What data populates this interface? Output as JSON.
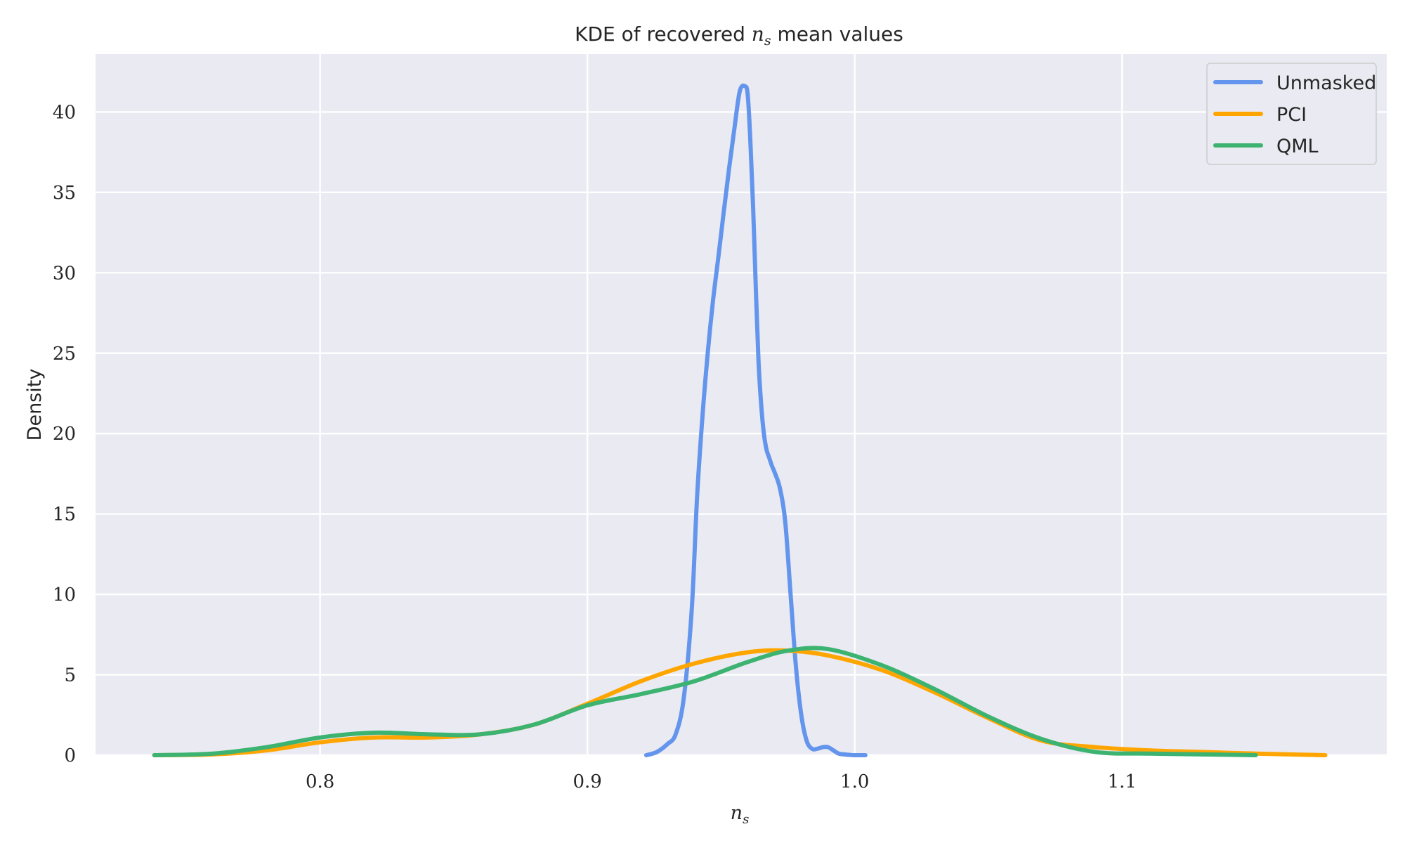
{
  "chart_data": {
    "type": "line",
    "title": {
      "prefix": "KDE of recovered ",
      "math_base": "n",
      "math_sub": "s",
      "suffix": " mean values"
    },
    "xlabel": {
      "math_base": "n",
      "math_sub": "s"
    },
    "ylabel": "Density",
    "xlim": [
      0.716,
      1.199
    ],
    "ylim": [
      0,
      43.6
    ],
    "xticks": [
      0.8,
      0.9,
      1.0,
      1.1
    ],
    "xtick_labels": [
      "0.8",
      "0.9",
      "1.0",
      "1.1"
    ],
    "yticks": [
      0,
      5,
      10,
      15,
      20,
      25,
      30,
      35,
      40
    ],
    "ytick_labels": [
      "0",
      "5",
      "10",
      "15",
      "20",
      "25",
      "30",
      "35",
      "40"
    ],
    "grid": true,
    "legend_position": "top-right",
    "background_color": "#eaeaf2",
    "series": [
      {
        "name": "Unmasked",
        "color": "#6495ed",
        "x": [
          0.922,
          0.926,
          0.93,
          0.933,
          0.936,
          0.939,
          0.941,
          0.943,
          0.945,
          0.947,
          0.949,
          0.951,
          0.953,
          0.955,
          0.957,
          0.959,
          0.96,
          0.961,
          0.962,
          0.963,
          0.964,
          0.965,
          0.966,
          0.967,
          0.968,
          0.969,
          0.97,
          0.972,
          0.974,
          0.976,
          0.978,
          0.98,
          0.982,
          0.984,
          0.986,
          0.988,
          0.99,
          0.992,
          0.994,
          0.996,
          0.998,
          1.0,
          1.004
        ],
        "y": [
          0.0,
          0.2,
          0.7,
          1.3,
          3.5,
          9.0,
          16.0,
          21.0,
          25.0,
          28.3,
          31.0,
          33.8,
          36.5,
          39.0,
          41.3,
          41.6,
          41.0,
          38.0,
          34.0,
          29.0,
          24.5,
          21.8,
          20.0,
          19.0,
          18.5,
          18.0,
          17.6,
          16.6,
          14.5,
          10.0,
          5.5,
          2.5,
          0.9,
          0.4,
          0.4,
          0.5,
          0.5,
          0.3,
          0.1,
          0.05,
          0.02,
          0.0,
          0.0
        ]
      },
      {
        "name": "PCI",
        "color": "#ffa500",
        "x": [
          0.738,
          0.76,
          0.78,
          0.8,
          0.82,
          0.84,
          0.86,
          0.88,
          0.9,
          0.92,
          0.94,
          0.96,
          0.975,
          0.99,
          1.01,
          1.03,
          1.05,
          1.07,
          1.09,
          1.11,
          1.13,
          1.15,
          1.176
        ],
        "y": [
          0.0,
          0.05,
          0.3,
          0.8,
          1.1,
          1.1,
          1.3,
          1.9,
          3.2,
          4.6,
          5.7,
          6.4,
          6.5,
          6.2,
          5.3,
          3.9,
          2.3,
          0.9,
          0.5,
          0.3,
          0.2,
          0.1,
          0.0
        ]
      },
      {
        "name": "QML",
        "color": "#3cb371",
        "x": [
          0.738,
          0.76,
          0.78,
          0.8,
          0.82,
          0.84,
          0.86,
          0.88,
          0.9,
          0.92,
          0.94,
          0.96,
          0.975,
          0.99,
          1.01,
          1.03,
          1.05,
          1.07,
          1.09,
          1.11,
          1.13,
          1.15
        ],
        "y": [
          0.0,
          0.1,
          0.5,
          1.1,
          1.4,
          1.3,
          1.3,
          1.9,
          3.1,
          3.8,
          4.6,
          5.8,
          6.5,
          6.6,
          5.6,
          4.1,
          2.4,
          1.0,
          0.2,
          0.1,
          0.05,
          0.0
        ]
      }
    ]
  }
}
